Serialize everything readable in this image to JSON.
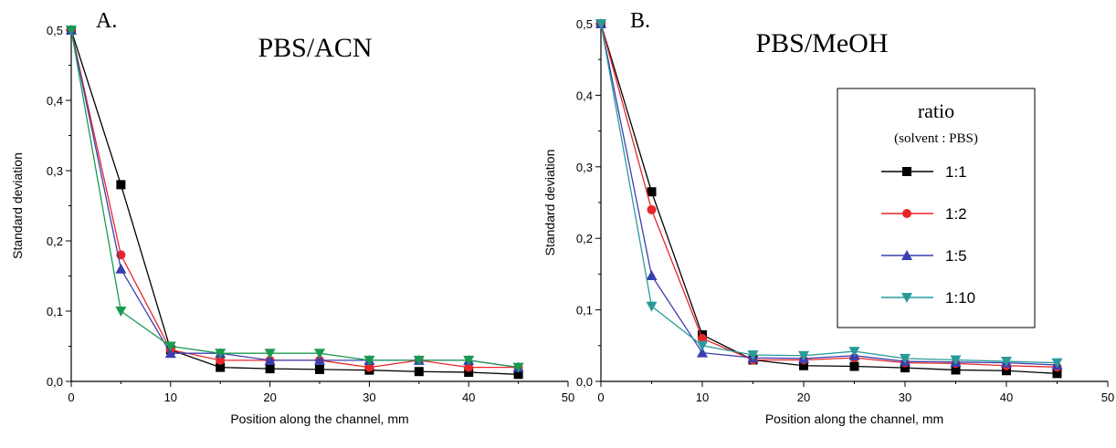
{
  "chart_data": [
    {
      "type": "line",
      "panel_letter": "A.",
      "title": "PBS/ACN",
      "xlabel": "Position along the channel, mm",
      "ylabel": "Standard deviation",
      "xlim": [
        0,
        50
      ],
      "ylim": [
        0,
        0.5
      ],
      "x_ticks": [
        "0",
        "10",
        "20",
        "30",
        "40",
        "50"
      ],
      "y_ticks": [
        "0,0",
        "0,1",
        "0,2",
        "0,3",
        "0,4",
        "0,5"
      ],
      "x": [
        0,
        5,
        10,
        15,
        20,
        25,
        30,
        35,
        40,
        45
      ],
      "series": [
        {
          "name": "1:1",
          "color": "#000000",
          "marker": "square",
          "values": [
            0.5,
            0.28,
            0.045,
            0.02,
            0.018,
            0.017,
            0.016,
            0.014,
            0.013,
            0.01
          ]
        },
        {
          "name": "1:2",
          "color": "#e8262a",
          "marker": "circle",
          "values": [
            0.5,
            0.18,
            0.045,
            0.03,
            0.03,
            0.03,
            0.02,
            0.03,
            0.02,
            0.02
          ]
        },
        {
          "name": "1:5",
          "color": "#3a3fb0",
          "marker": "triangle-up",
          "values": [
            0.5,
            0.16,
            0.04,
            0.04,
            0.03,
            0.03,
            0.03,
            0.03,
            0.03,
            0.02
          ]
        },
        {
          "name": "1:10",
          "color": "#1a9a50",
          "marker": "triangle-down",
          "values": [
            0.5,
            0.1,
            0.05,
            0.04,
            0.04,
            0.04,
            0.03,
            0.03,
            0.03,
            0.02
          ]
        }
      ]
    },
    {
      "type": "line",
      "panel_letter": "B.",
      "title": "PBS/MeOH",
      "xlabel": "Position along the channel, mm",
      "ylabel": "Standard deviation",
      "xlim": [
        0,
        50
      ],
      "ylim": [
        0,
        0.5
      ],
      "x_ticks": [
        "0",
        "10",
        "20",
        "30",
        "40",
        "50"
      ],
      "y_ticks": [
        "0,0",
        "0,1",
        "0,2",
        "0,3",
        "0,4",
        "0,5"
      ],
      "x": [
        0,
        5,
        10,
        15,
        20,
        25,
        30,
        35,
        40,
        45
      ],
      "legend": {
        "title": "ratio",
        "subtitle": "(solvent : PBS)",
        "placement": "right"
      },
      "series": [
        {
          "name": "1:1",
          "color": "#000000",
          "marker": "square",
          "values": [
            0.5,
            0.265,
            0.065,
            0.03,
            0.022,
            0.021,
            0.019,
            0.016,
            0.015,
            0.011
          ]
        },
        {
          "name": "1:2",
          "color": "#e8262a",
          "marker": "circle",
          "values": [
            0.5,
            0.24,
            0.06,
            0.03,
            0.03,
            0.033,
            0.026,
            0.025,
            0.022,
            0.02
          ]
        },
        {
          "name": "1:5",
          "color": "#3a3fb0",
          "marker": "triangle-up",
          "values": [
            0.5,
            0.148,
            0.04,
            0.033,
            0.032,
            0.036,
            0.028,
            0.027,
            0.026,
            0.023
          ]
        },
        {
          "name": "1:10",
          "color": "#2a9a9a",
          "marker": "triangle-down",
          "values": [
            0.5,
            0.105,
            0.05,
            0.037,
            0.036,
            0.042,
            0.032,
            0.03,
            0.028,
            0.026
          ]
        }
      ]
    }
  ]
}
